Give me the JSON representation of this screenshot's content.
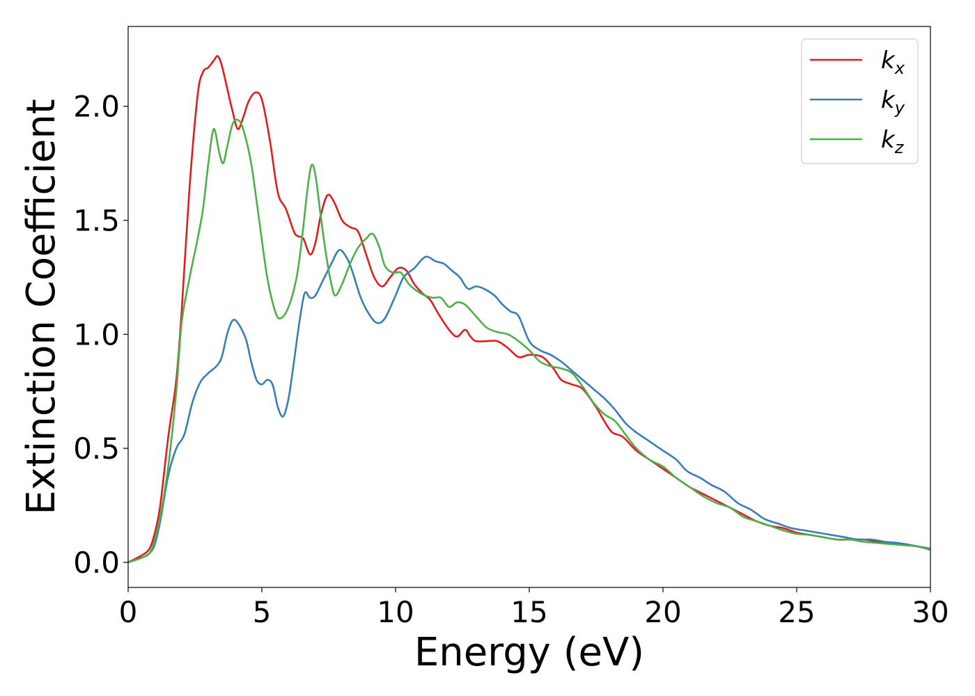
{
  "chart_data": {
    "type": "line",
    "xlabel": "Energy (eV)",
    "ylabel": "Extinction Coefficient",
    "xlim": [
      0,
      30
    ],
    "ylim": [
      -0.11,
      2.35
    ],
    "xticks": [
      0,
      5,
      10,
      15,
      20,
      25,
      30
    ],
    "xtick_labels": [
      "0",
      "5",
      "10",
      "15",
      "20",
      "25",
      "30"
    ],
    "yticks": [
      0.0,
      0.5,
      1.0,
      1.5,
      2.0
    ],
    "ytick_labels": [
      "0.0",
      "0.5",
      "1.0",
      "1.5",
      "2.0"
    ],
    "grid": false,
    "legend_position": "top-right",
    "series": [
      {
        "name": "k_x",
        "legend_base": "k",
        "legend_sub": "x",
        "color": "#e41a1c",
        "points": [
          [
            0,
            0
          ],
          [
            0.5,
            0.03
          ],
          [
            0.8,
            0.06
          ],
          [
            1.0,
            0.13
          ],
          [
            1.2,
            0.25
          ],
          [
            1.5,
            0.55
          ],
          [
            1.8,
            0.8
          ],
          [
            2.0,
            1.1
          ],
          [
            2.3,
            1.65
          ],
          [
            2.6,
            2.05
          ],
          [
            2.8,
            2.15
          ],
          [
            3.0,
            2.17
          ],
          [
            3.2,
            2.2
          ],
          [
            3.35,
            2.22
          ],
          [
            3.5,
            2.18
          ],
          [
            3.7,
            2.08
          ],
          [
            3.9,
            1.98
          ],
          [
            4.1,
            1.9
          ],
          [
            4.3,
            1.95
          ],
          [
            4.5,
            2.02
          ],
          [
            4.75,
            2.06
          ],
          [
            5.0,
            2.03
          ],
          [
            5.3,
            1.85
          ],
          [
            5.6,
            1.62
          ],
          [
            5.9,
            1.55
          ],
          [
            6.2,
            1.45
          ],
          [
            6.35,
            1.43
          ],
          [
            6.55,
            1.42
          ],
          [
            6.8,
            1.35
          ],
          [
            7.0,
            1.4
          ],
          [
            7.2,
            1.52
          ],
          [
            7.45,
            1.61
          ],
          [
            7.7,
            1.58
          ],
          [
            8.0,
            1.5
          ],
          [
            8.3,
            1.47
          ],
          [
            8.6,
            1.45
          ],
          [
            8.9,
            1.35
          ],
          [
            9.2,
            1.25
          ],
          [
            9.5,
            1.21
          ],
          [
            9.8,
            1.25
          ],
          [
            10.1,
            1.29
          ],
          [
            10.4,
            1.28
          ],
          [
            10.7,
            1.22
          ],
          [
            11.0,
            1.18
          ],
          [
            11.3,
            1.15
          ],
          [
            11.6,
            1.09
          ],
          [
            12.0,
            1.02
          ],
          [
            12.3,
            0.99
          ],
          [
            12.6,
            1.02
          ],
          [
            12.8,
            0.99
          ],
          [
            13.0,
            0.97
          ],
          [
            13.4,
            0.97
          ],
          [
            13.8,
            0.97
          ],
          [
            14.2,
            0.94
          ],
          [
            14.6,
            0.9
          ],
          [
            15.0,
            0.91
          ],
          [
            15.5,
            0.9
          ],
          [
            15.9,
            0.85
          ],
          [
            16.2,
            0.8
          ],
          [
            16.6,
            0.78
          ],
          [
            17.0,
            0.76
          ],
          [
            17.5,
            0.68
          ],
          [
            17.8,
            0.62
          ],
          [
            18.1,
            0.57
          ],
          [
            18.5,
            0.55
          ],
          [
            19.0,
            0.49
          ],
          [
            19.5,
            0.45
          ],
          [
            20.0,
            0.41
          ],
          [
            20.5,
            0.37
          ],
          [
            21.0,
            0.33
          ],
          [
            21.5,
            0.3
          ],
          [
            22.0,
            0.27
          ],
          [
            22.5,
            0.24
          ],
          [
            23.0,
            0.21
          ],
          [
            23.5,
            0.18
          ],
          [
            24.0,
            0.16
          ],
          [
            24.5,
            0.15
          ],
          [
            25.0,
            0.13
          ],
          [
            25.5,
            0.12
          ],
          [
            26.0,
            0.11
          ],
          [
            26.5,
            0.1
          ],
          [
            27.0,
            0.1
          ],
          [
            27.5,
            0.1
          ],
          [
            28.0,
            0.09
          ],
          [
            28.5,
            0.08
          ],
          [
            29.0,
            0.08
          ],
          [
            29.5,
            0.07
          ],
          [
            30.0,
            0.055
          ]
        ]
      },
      {
        "name": "k_y",
        "legend_base": "k",
        "legend_sub": "y",
        "color": "#377eb8",
        "points": [
          [
            0,
            0
          ],
          [
            0.5,
            0.02
          ],
          [
            0.8,
            0.04
          ],
          [
            1.0,
            0.08
          ],
          [
            1.2,
            0.18
          ],
          [
            1.5,
            0.38
          ],
          [
            1.8,
            0.5
          ],
          [
            2.1,
            0.56
          ],
          [
            2.4,
            0.7
          ],
          [
            2.7,
            0.79
          ],
          [
            3.0,
            0.83
          ],
          [
            3.3,
            0.86
          ],
          [
            3.5,
            0.9
          ],
          [
            3.7,
            1.0
          ],
          [
            3.9,
            1.06
          ],
          [
            4.1,
            1.05
          ],
          [
            4.4,
            0.98
          ],
          [
            4.6,
            0.88
          ],
          [
            4.8,
            0.8
          ],
          [
            5.0,
            0.78
          ],
          [
            5.2,
            0.8
          ],
          [
            5.4,
            0.78
          ],
          [
            5.6,
            0.68
          ],
          [
            5.8,
            0.64
          ],
          [
            6.0,
            0.72
          ],
          [
            6.2,
            0.88
          ],
          [
            6.4,
            1.05
          ],
          [
            6.6,
            1.18
          ],
          [
            6.8,
            1.16
          ],
          [
            7.0,
            1.17
          ],
          [
            7.3,
            1.24
          ],
          [
            7.6,
            1.31
          ],
          [
            7.9,
            1.37
          ],
          [
            8.2,
            1.33
          ],
          [
            8.4,
            1.27
          ],
          [
            8.7,
            1.16
          ],
          [
            9.0,
            1.09
          ],
          [
            9.3,
            1.05
          ],
          [
            9.6,
            1.07
          ],
          [
            10.0,
            1.17
          ],
          [
            10.3,
            1.25
          ],
          [
            10.7,
            1.29
          ],
          [
            11.0,
            1.33
          ],
          [
            11.2,
            1.34
          ],
          [
            11.5,
            1.32
          ],
          [
            11.8,
            1.31
          ],
          [
            12.1,
            1.28
          ],
          [
            12.4,
            1.25
          ],
          [
            12.7,
            1.2
          ],
          [
            13.0,
            1.21
          ],
          [
            13.3,
            1.2
          ],
          [
            13.7,
            1.17
          ],
          [
            14.0,
            1.13
          ],
          [
            14.3,
            1.1
          ],
          [
            14.6,
            1.08
          ],
          [
            15.0,
            0.97
          ],
          [
            15.4,
            0.93
          ],
          [
            15.8,
            0.91
          ],
          [
            16.2,
            0.88
          ],
          [
            16.6,
            0.84
          ],
          [
            17.0,
            0.8
          ],
          [
            17.4,
            0.76
          ],
          [
            17.8,
            0.72
          ],
          [
            18.2,
            0.67
          ],
          [
            18.6,
            0.61
          ],
          [
            19.0,
            0.57
          ],
          [
            19.5,
            0.53
          ],
          [
            20.0,
            0.49
          ],
          [
            20.5,
            0.45
          ],
          [
            20.9,
            0.4
          ],
          [
            21.4,
            0.37
          ],
          [
            21.8,
            0.34
          ],
          [
            22.3,
            0.31
          ],
          [
            22.8,
            0.26
          ],
          [
            23.3,
            0.23
          ],
          [
            23.8,
            0.19
          ],
          [
            24.3,
            0.17
          ],
          [
            24.8,
            0.15
          ],
          [
            25.3,
            0.14
          ],
          [
            25.8,
            0.13
          ],
          [
            26.3,
            0.12
          ],
          [
            26.8,
            0.11
          ],
          [
            27.3,
            0.1
          ],
          [
            27.8,
            0.1
          ],
          [
            28.3,
            0.09
          ],
          [
            28.8,
            0.085
          ],
          [
            29.3,
            0.075
          ],
          [
            30.0,
            0.06
          ]
        ]
      },
      {
        "name": "k_z",
        "legend_base": "k",
        "legend_sub": "z",
        "color": "#4daf4a",
        "points": [
          [
            0,
            0
          ],
          [
            0.5,
            0.02
          ],
          [
            0.8,
            0.04
          ],
          [
            1.0,
            0.1
          ],
          [
            1.2,
            0.2
          ],
          [
            1.5,
            0.42
          ],
          [
            1.8,
            0.75
          ],
          [
            2.0,
            1.05
          ],
          [
            2.3,
            1.25
          ],
          [
            2.6,
            1.42
          ],
          [
            2.8,
            1.55
          ],
          [
            3.0,
            1.75
          ],
          [
            3.2,
            1.9
          ],
          [
            3.4,
            1.8
          ],
          [
            3.55,
            1.75
          ],
          [
            3.7,
            1.82
          ],
          [
            3.9,
            1.92
          ],
          [
            4.1,
            1.94
          ],
          [
            4.3,
            1.9
          ],
          [
            4.6,
            1.75
          ],
          [
            4.9,
            1.5
          ],
          [
            5.2,
            1.25
          ],
          [
            5.5,
            1.1
          ],
          [
            5.7,
            1.07
          ],
          [
            6.0,
            1.12
          ],
          [
            6.3,
            1.25
          ],
          [
            6.5,
            1.42
          ],
          [
            6.7,
            1.63
          ],
          [
            6.85,
            1.74
          ],
          [
            7.0,
            1.7
          ],
          [
            7.2,
            1.52
          ],
          [
            7.4,
            1.35
          ],
          [
            7.6,
            1.22
          ],
          [
            7.75,
            1.17
          ],
          [
            8.0,
            1.22
          ],
          [
            8.3,
            1.31
          ],
          [
            8.6,
            1.38
          ],
          [
            8.9,
            1.42
          ],
          [
            9.15,
            1.44
          ],
          [
            9.4,
            1.38
          ],
          [
            9.6,
            1.3
          ],
          [
            9.9,
            1.27
          ],
          [
            10.2,
            1.27
          ],
          [
            10.5,
            1.22
          ],
          [
            10.8,
            1.19
          ],
          [
            11.1,
            1.17
          ],
          [
            11.4,
            1.16
          ],
          [
            11.7,
            1.16
          ],
          [
            12.0,
            1.12
          ],
          [
            12.3,
            1.14
          ],
          [
            12.6,
            1.13
          ],
          [
            13.0,
            1.08
          ],
          [
            13.4,
            1.03
          ],
          [
            13.8,
            1.01
          ],
          [
            14.2,
            1.0
          ],
          [
            14.6,
            0.97
          ],
          [
            15.0,
            0.93
          ],
          [
            15.4,
            0.88
          ],
          [
            15.8,
            0.86
          ],
          [
            16.2,
            0.85
          ],
          [
            16.6,
            0.83
          ],
          [
            17.0,
            0.77
          ],
          [
            17.4,
            0.7
          ],
          [
            17.8,
            0.65
          ],
          [
            18.2,
            0.62
          ],
          [
            18.6,
            0.56
          ],
          [
            19.0,
            0.5
          ],
          [
            19.5,
            0.45
          ],
          [
            20.0,
            0.42
          ],
          [
            20.5,
            0.37
          ],
          [
            21.0,
            0.33
          ],
          [
            21.5,
            0.29
          ],
          [
            22.0,
            0.26
          ],
          [
            22.5,
            0.24
          ],
          [
            23.0,
            0.2
          ],
          [
            23.5,
            0.18
          ],
          [
            24.0,
            0.16
          ],
          [
            24.5,
            0.14
          ],
          [
            25.0,
            0.125
          ],
          [
            25.5,
            0.12
          ],
          [
            26.0,
            0.11
          ],
          [
            26.5,
            0.1
          ],
          [
            27.0,
            0.1
          ],
          [
            27.5,
            0.09
          ],
          [
            28.0,
            0.085
          ],
          [
            28.5,
            0.08
          ],
          [
            29.0,
            0.075
          ],
          [
            29.5,
            0.07
          ],
          [
            30.0,
            0.055
          ]
        ]
      }
    ]
  }
}
